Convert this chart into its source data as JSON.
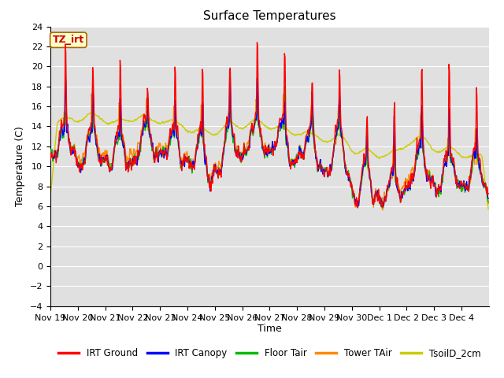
{
  "title": "Surface Temperatures",
  "ylabel": "Temperature (C)",
  "xlabel": "Time",
  "annotation": "TZ_irt",
  "ylim": [
    -4,
    24
  ],
  "yticks": [
    -4,
    -2,
    0,
    2,
    4,
    6,
    8,
    10,
    12,
    14,
    16,
    18,
    20,
    22,
    24
  ],
  "colors": {
    "IRT Ground": "#ff0000",
    "IRT Canopy": "#0000ff",
    "Floor Tair": "#00bb00",
    "Tower TAir": "#ff8800",
    "TsoilD_2cm": "#cccc00"
  },
  "bg_color": "#e0e0e0",
  "grid_color": "#ffffff",
  "title_fontsize": 11,
  "label_fontsize": 9,
  "tick_fontsize": 8
}
